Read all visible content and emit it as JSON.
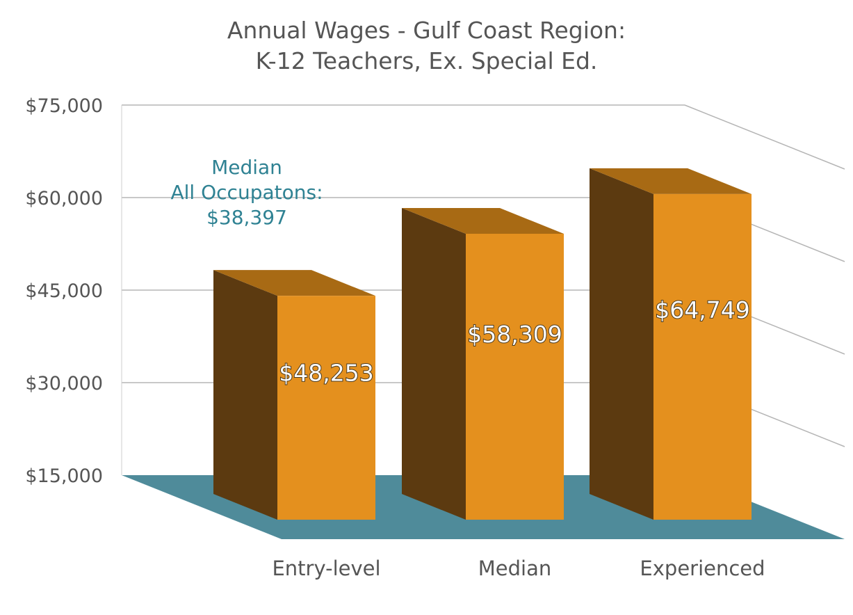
{
  "chart_data": {
    "type": "bar",
    "title": [
      "Annual Wages - Gulf Coast Region:",
      "K-12 Teachers, Ex. Special Ed."
    ],
    "categories": [
      "Entry-level",
      "Median",
      "Experienced"
    ],
    "values": [
      48253,
      58309,
      64749
    ],
    "data_labels": [
      "$48,253",
      "$58,309",
      "$64,749"
    ],
    "ylim": [
      15000,
      75000
    ],
    "yticks": [
      {
        "value": 75000,
        "label": "$75,000"
      },
      {
        "value": 60000,
        "label": "$60,000"
      },
      {
        "value": 45000,
        "label": "$45,000"
      },
      {
        "value": 30000,
        "label": "$30,000"
      },
      {
        "value": 15000,
        "label": "$15,000"
      }
    ],
    "grid": true,
    "style": "3d",
    "colors": {
      "bar_front": "#e4901e",
      "bar_side": "#5c3a10",
      "bar_top": "#a86a14",
      "floor": "#4f8b9a",
      "annotation": "#2f8293"
    },
    "annotation": {
      "lines": [
        "Median",
        "All Occupatons:",
        "$38,397"
      ],
      "value": 38397
    }
  }
}
